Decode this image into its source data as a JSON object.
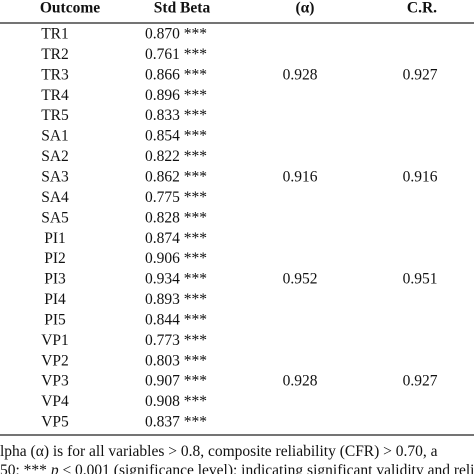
{
  "table": {
    "header": [
      "Outcome",
      "Std Beta",
      "(α)",
      "C.R."
    ],
    "groups": [
      {
        "rows": [
          {
            "outcome": "TR1",
            "beta": "0.870 ***"
          },
          {
            "outcome": "TR2",
            "beta": "0.761 ***"
          },
          {
            "outcome": "TR3",
            "beta": "0.866 ***"
          },
          {
            "outcome": "TR4",
            "beta": "0.896 ***"
          },
          {
            "outcome": "TR5",
            "beta": "0.833 ***"
          }
        ],
        "alpha": "0.928",
        "cr": "0.927"
      },
      {
        "rows": [
          {
            "outcome": "SA1",
            "beta": "0.854 ***"
          },
          {
            "outcome": "SA2",
            "beta": "0.822 ***"
          },
          {
            "outcome": "SA3",
            "beta": "0.862 ***"
          },
          {
            "outcome": "SA4",
            "beta": "0.775 ***"
          },
          {
            "outcome": "SA5",
            "beta": "0.828 ***"
          }
        ],
        "alpha": "0.916",
        "cr": "0.916"
      },
      {
        "rows": [
          {
            "outcome": "PI1",
            "beta": "0.874 ***"
          },
          {
            "outcome": "PI2",
            "beta": "0.906 ***"
          },
          {
            "outcome": "PI3",
            "beta": "0.934 ***"
          },
          {
            "outcome": "PI4",
            "beta": "0.893 ***"
          },
          {
            "outcome": "PI5",
            "beta": "0.844 ***"
          }
        ],
        "alpha": "0.952",
        "cr": "0.951"
      },
      {
        "rows": [
          {
            "outcome": "VP1",
            "beta": "0.773 ***"
          },
          {
            "outcome": "VP2",
            "beta": "0.803 ***"
          },
          {
            "outcome": "VP3",
            "beta": "0.907 ***"
          },
          {
            "outcome": "VP4",
            "beta": "0.908 ***"
          },
          {
            "outcome": "VP5",
            "beta": "0.837 ***"
          }
        ],
        "alpha": "0.928",
        "cr": "0.927"
      }
    ],
    "notes": [
      [
        "lpha (α) is for all variables > 0.8, composite reliability (CFR) > 0.70, a"
      ],
      [
        "50; *** ",
        "p",
        " < 0.001 (significance level); indicating significant validity and reli"
      ]
    ]
  }
}
